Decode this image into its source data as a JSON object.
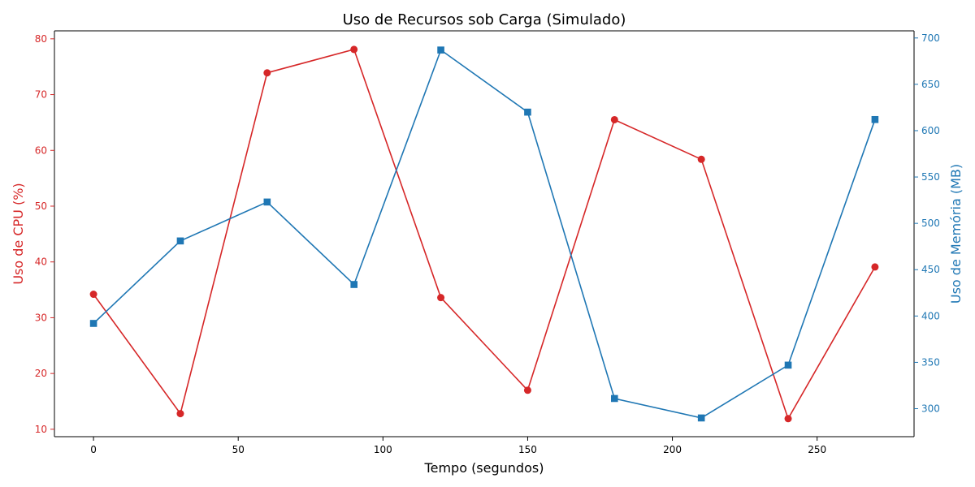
{
  "chart_data": {
    "type": "line",
    "title": "Uso de Recursos sob Carga (Simulado)",
    "xlabel": "Tempo (segundos)",
    "ylabel_left": "Uso de CPU (%)",
    "ylabel_right": "Uso de Memória (MB)",
    "x": [
      0,
      30,
      60,
      90,
      120,
      150,
      180,
      210,
      240,
      270
    ],
    "xlim": [
      -13.5,
      283.5
    ],
    "x_ticks": [
      0,
      50,
      100,
      150,
      200,
      250
    ],
    "ylim_left": [
      8.67,
      81.43
    ],
    "y_ticks_left": [
      10,
      20,
      30,
      40,
      50,
      60,
      70,
      80
    ],
    "ylim_right": [
      269.8,
      707.7
    ],
    "y_ticks_right": [
      300,
      350,
      400,
      450,
      500,
      550,
      600,
      650,
      700
    ],
    "series": [
      {
        "axis": "left",
        "color": "#d62728",
        "marker": "circle",
        "values": [
          34.2,
          12.8,
          73.9,
          78.1,
          33.6,
          17.0,
          65.5,
          58.4,
          11.9,
          39.1
        ]
      },
      {
        "axis": "right",
        "color": "#1f77b4",
        "marker": "square",
        "values": [
          392,
          481,
          523,
          434,
          687,
          620,
          311,
          290,
          347,
          612
        ]
      }
    ],
    "grid": false,
    "legend": "none"
  }
}
